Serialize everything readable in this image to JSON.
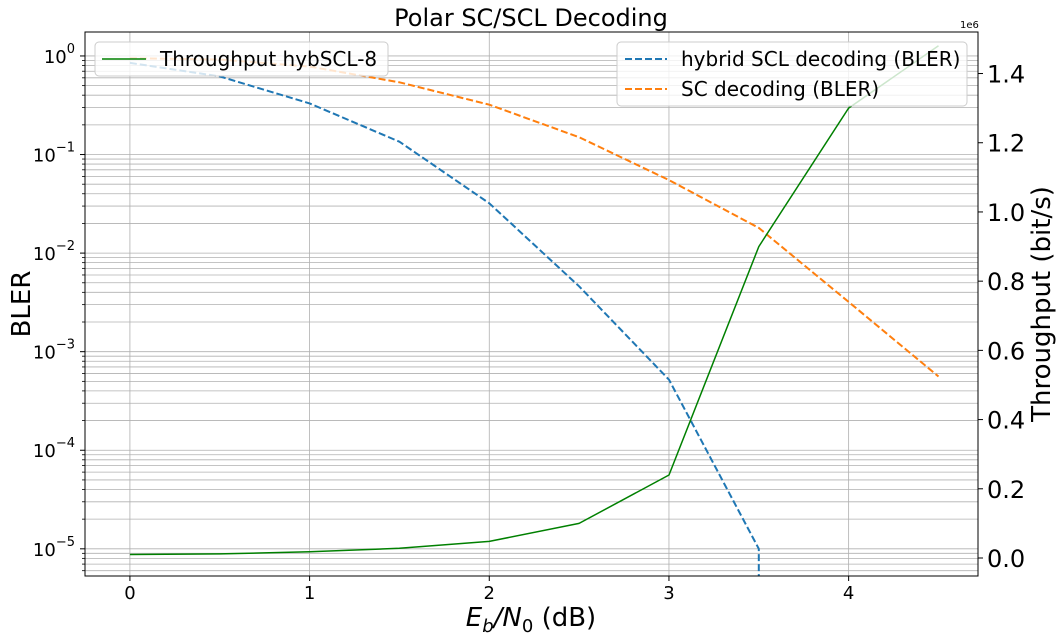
{
  "chart_data": {
    "type": "line",
    "title": "Polar SC/SCL Decoding",
    "xlabel_main": "E",
    "xlabel_sub_b": "b",
    "xlabel_mid": "/N",
    "xlabel_sub_0": "0",
    "xlabel_unit": " (dB)",
    "ylabel_left": "BLER",
    "ylabel_right": "Throughput (bit/s)",
    "right_axis_offset": "1e6",
    "x_ticks": [
      "0",
      "1",
      "2",
      "3",
      "4"
    ],
    "xlim": [
      -0.25,
      4.72
    ],
    "left_axis": {
      "scale": "log",
      "ylim": [
        5.3e-06,
        1.75
      ],
      "tick_bases": [
        "10",
        "10",
        "10",
        "10",
        "10",
        "10"
      ],
      "tick_exponents": [
        "−5",
        "−4",
        "−3",
        "−2",
        "−1",
        "0"
      ]
    },
    "right_axis": {
      "scale": "linear",
      "ylim": [
        -0.052,
        1.52
      ],
      "ticks": [
        "0.0",
        "0.2",
        "0.4",
        "0.6",
        "0.8",
        "1.0",
        "1.2",
        "1.4"
      ]
    },
    "grid": true,
    "series": [
      {
        "name": "hybrid SCL decoding (BLER)",
        "axis": "left",
        "style": "dashed",
        "color": "#1f77b4",
        "x": [
          0,
          0.5,
          1,
          1.5,
          2,
          2.5,
          3,
          3.5,
          3.5
        ],
        "y": [
          0.85,
          0.62,
          0.33,
          0.135,
          0.032,
          0.0046,
          0.00052,
          1e-05,
          5.3e-06
        ]
      },
      {
        "name": "SC decoding (BLER)",
        "axis": "left",
        "style": "dashed",
        "color": "#ff7f0e",
        "x": [
          0,
          0.5,
          1,
          1.5,
          2,
          2.5,
          3,
          3.5,
          4,
          4.5
        ],
        "y": [
          0.95,
          0.92,
          0.78,
          0.54,
          0.32,
          0.15,
          0.055,
          0.018,
          0.0032,
          0.00056
        ]
      },
      {
        "name": "Throughput hybSCL-8",
        "axis": "right",
        "style": "solid",
        "color": "#008000",
        "x": [
          0,
          0.5,
          1,
          1.5,
          2,
          2.5,
          3,
          3.5,
          4,
          4.5
        ],
        "y": [
          0.01,
          0.012,
          0.018,
          0.028,
          0.048,
          0.1,
          0.24,
          0.9,
          1.3,
          1.48
        ]
      }
    ],
    "legend_left": {
      "placement": "top-left",
      "entries": [
        "Throughput hybSCL-8"
      ]
    },
    "legend_right": {
      "placement": "top-right",
      "entries": [
        "hybrid SCL decoding (BLER)",
        "SC decoding (BLER)"
      ]
    }
  }
}
